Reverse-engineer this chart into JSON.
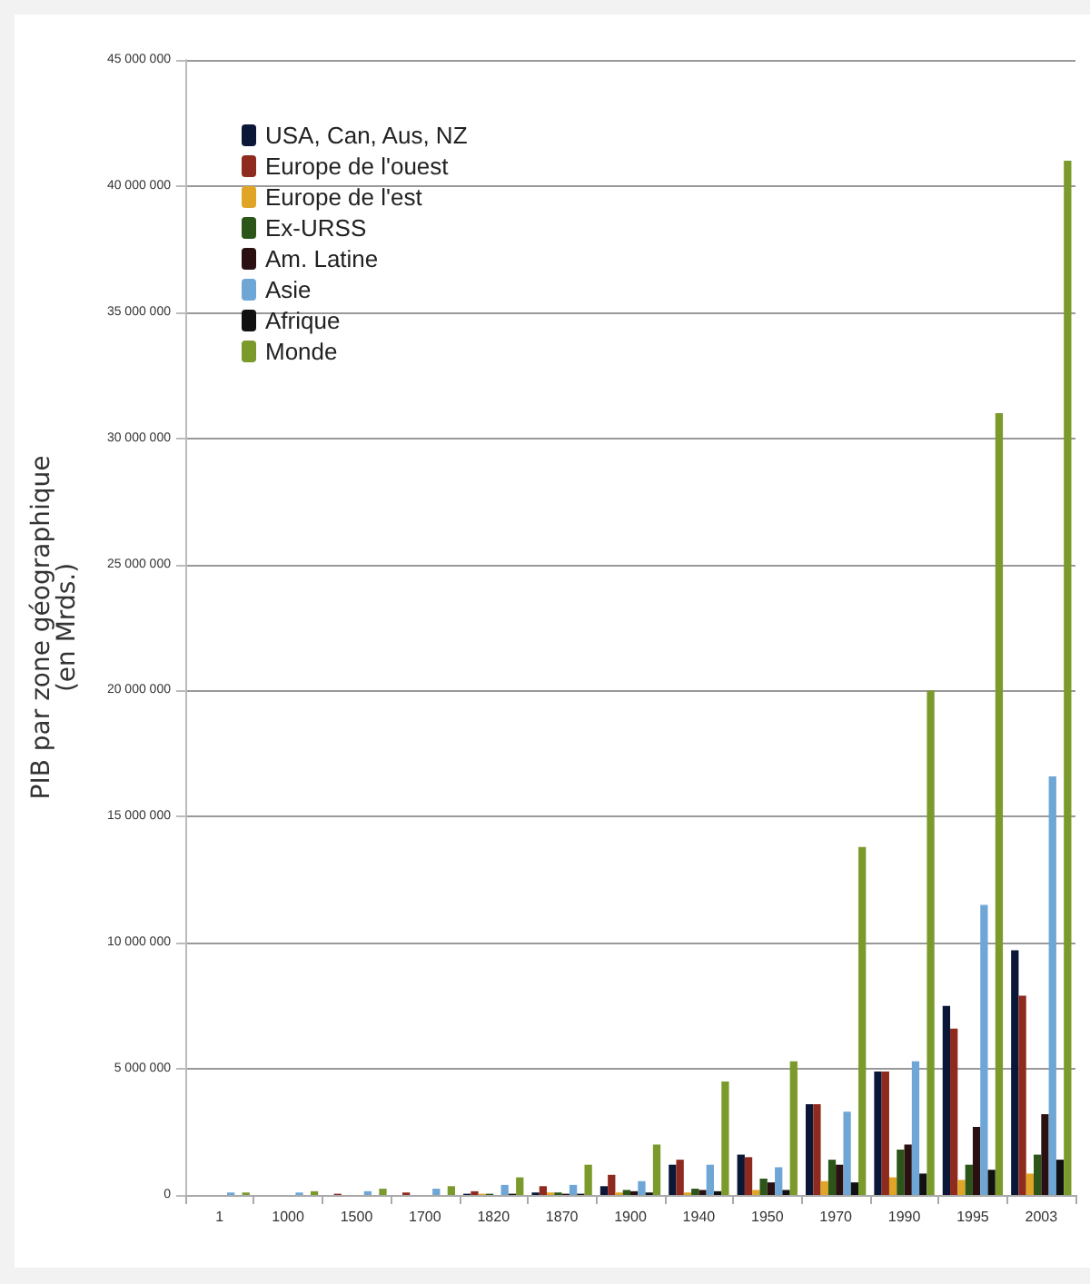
{
  "chart_data": {
    "type": "bar",
    "ylabel": "PIB par zone géographique\n(en Mrds.)",
    "categories": [
      "1",
      "1000",
      "1500",
      "1700",
      "1820",
      "1870",
      "1900",
      "1940",
      "1950",
      "1970",
      "1990",
      "1995",
      "2003"
    ],
    "series": [
      {
        "name": "USA, Can, Aus, NZ",
        "color": "#0b1736",
        "values": [
          0,
          0,
          0,
          0,
          50000,
          100000,
          350000,
          1200000,
          1600000,
          3600000,
          4900000,
          7500000,
          9700000
        ]
      },
      {
        "name": "Europe de l'ouest",
        "color": "#8e2a1e",
        "values": [
          0,
          0,
          50000,
          100000,
          150000,
          350000,
          800000,
          1400000,
          1500000,
          3600000,
          4900000,
          6600000,
          7900000
        ]
      },
      {
        "name": "Europe de l'est",
        "color": "#e0a526",
        "values": [
          0,
          0,
          0,
          0,
          50000,
          100000,
          100000,
          100000,
          200000,
          550000,
          700000,
          600000,
          850000
        ]
      },
      {
        "name": "Ex-URSS",
        "color": "#2b5519",
        "values": [
          0,
          0,
          0,
          0,
          50000,
          100000,
          200000,
          250000,
          650000,
          1400000,
          1800000,
          1200000,
          1600000
        ]
      },
      {
        "name": "Am. Latine",
        "color": "#2a1010",
        "values": [
          0,
          0,
          0,
          0,
          0,
          50000,
          150000,
          200000,
          500000,
          1200000,
          2000000,
          2700000,
          3200000
        ]
      },
      {
        "name": "Asie",
        "color": "#6ea6d6",
        "values": [
          100000,
          100000,
          150000,
          250000,
          400000,
          400000,
          550000,
          1200000,
          1100000,
          3300000,
          5300000,
          11500000,
          16600000
        ]
      },
      {
        "name": "Afrique",
        "color": "#111111",
        "values": [
          0,
          0,
          0,
          0,
          50000,
          50000,
          100000,
          150000,
          200000,
          500000,
          850000,
          1000000,
          1400000
        ]
      },
      {
        "name": "Monde",
        "color": "#7b9a2c",
        "values": [
          100000,
          150000,
          250000,
          350000,
          700000,
          1200000,
          2000000,
          4500000,
          5300000,
          13800000,
          20000000,
          31000000,
          41000000
        ]
      }
    ],
    "ylim": [
      0,
      45000000
    ],
    "yticks": [
      {
        "value": 0,
        "label": "0"
      },
      {
        "value": 5000000,
        "label": "5 000 000"
      },
      {
        "value": 10000000,
        "label": "10 000 000"
      },
      {
        "value": 15000000,
        "label": "15 000 000"
      },
      {
        "value": 20000000,
        "label": "20 000 000"
      },
      {
        "value": 25000000,
        "label": "25 000 000"
      },
      {
        "value": 30000000,
        "label": "30 000 000"
      },
      {
        "value": 35000000,
        "label": "35 000 000"
      },
      {
        "value": 40000000,
        "label": "40 000 000"
      },
      {
        "value": 45000000,
        "label": "45 000 000"
      }
    ],
    "grid": "y",
    "legend": "top left"
  }
}
